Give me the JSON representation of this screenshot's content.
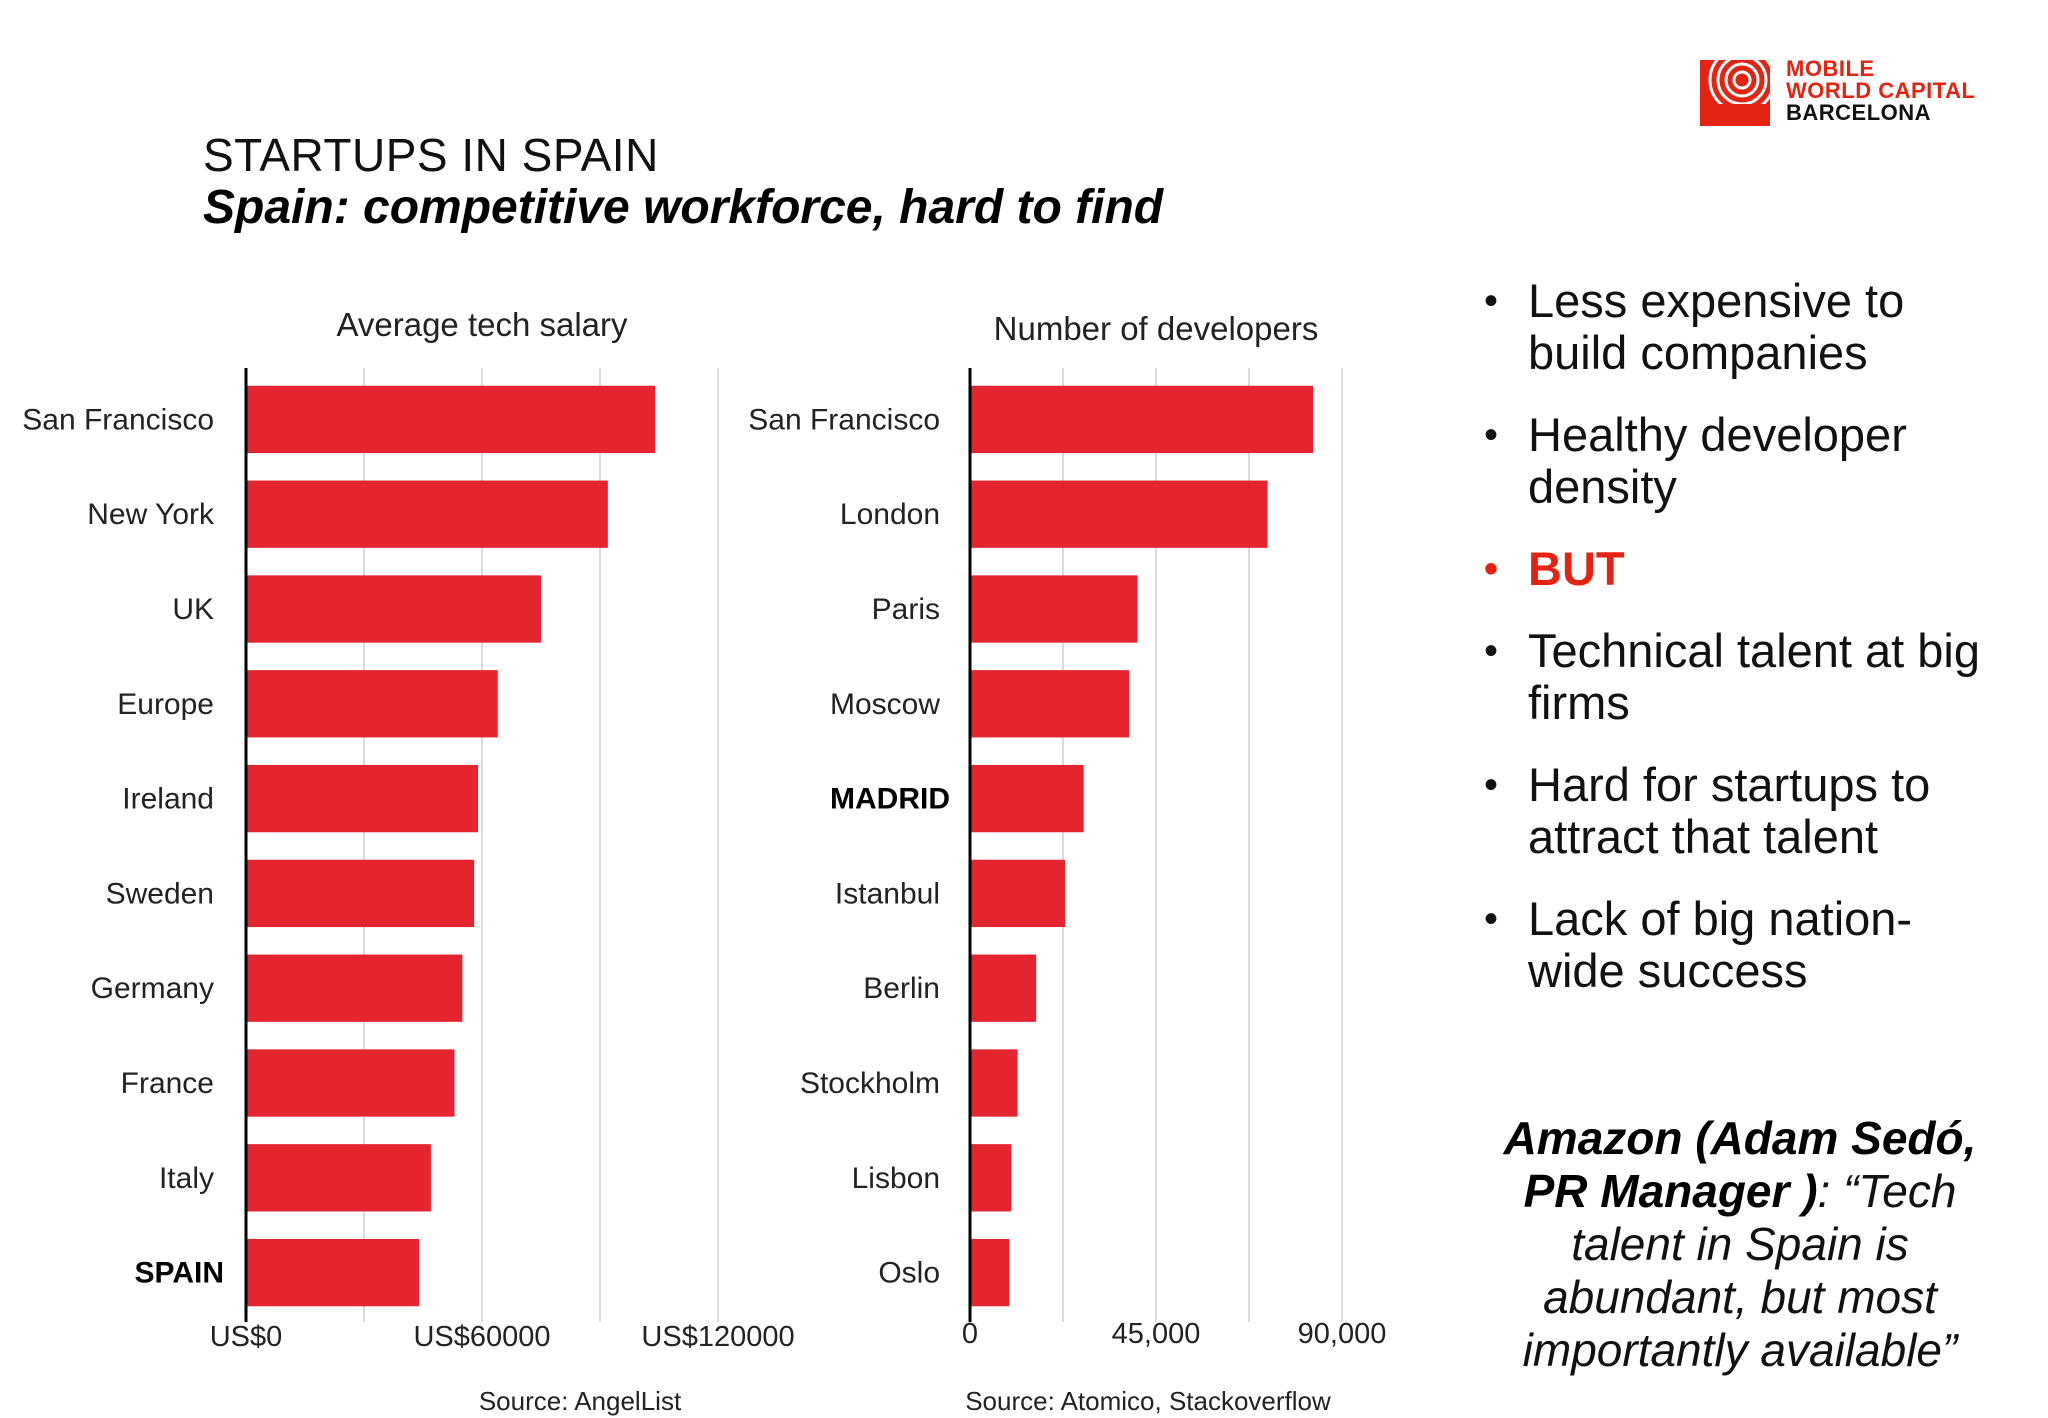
{
  "logo": {
    "line1": "MOBILE",
    "line2": "WORLD CAPITAL",
    "line3": "BARCELONA"
  },
  "header": {
    "kicker": "STARTUPS IN SPAIN",
    "headline": "Spain: competitive workforce, hard to find"
  },
  "chart_data": [
    {
      "type": "bar",
      "orientation": "horizontal",
      "title": "Average tech salary",
      "categories": [
        "San Francisco",
        "New York",
        "UK",
        "Europe",
        "Ireland",
        "Sweden",
        "Germany",
        "France",
        "Italy",
        "SPAIN"
      ],
      "values": [
        104000,
        92000,
        75000,
        64000,
        59000,
        58000,
        55000,
        53000,
        47000,
        44000
      ],
      "highlight": "SPAIN",
      "xlim": [
        0,
        120000
      ],
      "xticks": [
        0,
        60000,
        120000
      ],
      "xtick_labels": [
        "US$0",
        "US$60000",
        "US$120000"
      ],
      "source": "Source: AngelList",
      "grid": true
    },
    {
      "type": "bar",
      "orientation": "horizontal",
      "title": "Number of developers",
      "categories": [
        "San Francisco",
        "London",
        "Paris",
        "Moscow",
        "MADRID",
        "Istanbul",
        "Berlin",
        "Stockholm",
        "Lisbon",
        "Oslo"
      ],
      "values": [
        83000,
        72000,
        40500,
        38500,
        27500,
        23000,
        16000,
        11500,
        10000,
        9500
      ],
      "highlight": "MADRID",
      "xlim": [
        0,
        90000
      ],
      "xticks": [
        0,
        45000,
        90000
      ],
      "xtick_labels": [
        "0",
        "45,000",
        "90,000"
      ],
      "source": "Source: Atomico, Stackoverflow",
      "grid": true
    }
  ],
  "bullets": [
    {
      "text": "Less expensive to build companies",
      "highlight": false
    },
    {
      "text": "Healthy developer density",
      "highlight": false
    },
    {
      "text": "BUT",
      "highlight": true
    },
    {
      "text": "Technical talent at big firms",
      "highlight": false
    },
    {
      "text": "Hard for startups to attract that talent",
      "highlight": false
    },
    {
      "text": "Lack of big nation-wide success",
      "highlight": false
    }
  ],
  "quote": {
    "attribution": "Amazon (Adam Sedó, PR Manager )",
    "text": ": “Tech talent in Spain is abundant, but most importantly available”"
  },
  "colors": {
    "bar": "#e42530",
    "accent": "#e42313",
    "grid": "#cfcfcf"
  }
}
